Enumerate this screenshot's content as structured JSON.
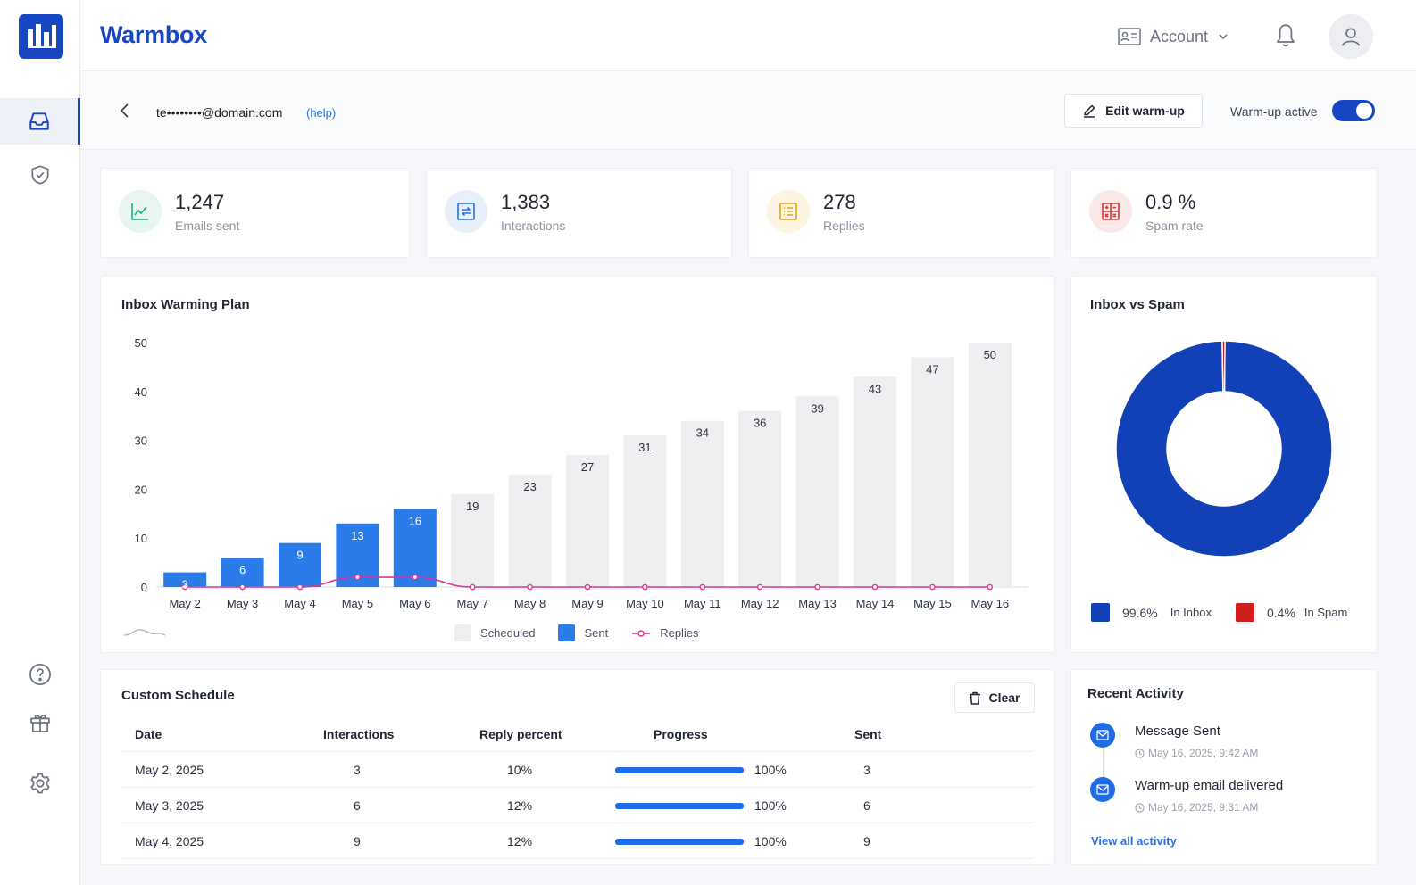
{
  "app": {
    "brand": "Warmbox",
    "accent": "#1746c2"
  },
  "header": {
    "account_label": "Account"
  },
  "sidebar": {
    "top_icons": [
      "inbox-icon",
      "shield-check-icon"
    ],
    "bottom_icons": [
      "help-icon",
      "gift-icon",
      "settings-icon"
    ]
  },
  "subbar": {
    "email": "te••••••••@domain.com",
    "help_label": "(help)",
    "edit_label": "Edit warm-up",
    "toggle_label": "Warm-up active",
    "toggle_on": true
  },
  "stats": [
    {
      "value": "1,247",
      "label": "Emails sent",
      "icon": "line-chart-icon",
      "color": "#17b38a",
      "bg": "#e7f6f1"
    },
    {
      "value": "1,383",
      "label": "Interactions",
      "icon": "exchange-icon",
      "color": "#2b6fe0",
      "bg": "#e8f0fc"
    },
    {
      "value": "278",
      "label": "Replies",
      "icon": "list-icon",
      "color": "#e0a21a",
      "bg": "#fdf4e1"
    },
    {
      "value": "0.9 %",
      "label": "Spam rate",
      "icon": "calculator-icon",
      "color": "#d43a3a",
      "bg": "#fbe9e9"
    }
  ],
  "warming_plan": {
    "title": "Inbox Warming Plan",
    "chart_data": {
      "type": "bar",
      "categories": [
        "May 2",
        "May 3",
        "May 4",
        "May 5",
        "May 6",
        "May 7",
        "May 8",
        "May 9",
        "May 10",
        "May 11",
        "May 12",
        "May 13",
        "May 14",
        "May 15",
        "May 16"
      ],
      "series": [
        {
          "name": "Sent",
          "values": [
            3,
            6,
            9,
            13,
            16,
            null,
            null,
            null,
            null,
            null,
            null,
            null,
            null,
            null,
            null
          ],
          "color": "#2b7be8"
        },
        {
          "name": "Scheduled",
          "values": [
            null,
            null,
            null,
            null,
            null,
            19,
            23,
            27,
            31,
            34,
            36,
            39,
            43,
            47,
            50
          ],
          "color": "#efeff1"
        },
        {
          "name": "Replies",
          "type": "line",
          "values": [
            0,
            0,
            0,
            2,
            2,
            0,
            0,
            0,
            0,
            0,
            0,
            0,
            0,
            0,
            0
          ],
          "color": "#e0358f"
        }
      ],
      "yticks": [
        0,
        10,
        20,
        30,
        40,
        50
      ],
      "ylim": [
        0,
        50
      ],
      "legend": "bottom-center"
    }
  },
  "inbox_vs_spam": {
    "title": "Inbox vs Spam",
    "chart_data": {
      "type": "pie",
      "slices": [
        {
          "label": "In Inbox",
          "value": 99.6,
          "display": "99.6%",
          "color": "#1240b6"
        },
        {
          "label": "In Spam",
          "value": 0.4,
          "display": "0.4%",
          "color": "#cf1f1f"
        }
      ]
    }
  },
  "schedule": {
    "title": "Custom Schedule",
    "clear_label": "Clear",
    "columns": [
      "Date",
      "Interactions",
      "Reply percent",
      "Progress",
      "Sent"
    ],
    "rows": [
      {
        "date": "May 2, 2025",
        "interactions": "3",
        "reply": "10%",
        "progress": 1.0,
        "progress_label": "100%",
        "sent": "3"
      },
      {
        "date": "May 3, 2025",
        "interactions": "6",
        "reply": "12%",
        "progress": 1.0,
        "progress_label": "100%",
        "sent": "6"
      },
      {
        "date": "May 4, 2025",
        "interactions": "9",
        "reply": "12%",
        "progress": 1.0,
        "progress_label": "100%",
        "sent": "9"
      }
    ]
  },
  "activity": {
    "title": "Recent Activity",
    "items": [
      {
        "title": "Message Sent",
        "time": "May 16, 2025, 9:42 AM"
      },
      {
        "title": "Warm-up email delivered",
        "time": "May 16, 2025, 9:31 AM"
      }
    ],
    "view_all_label": "View all activity"
  }
}
